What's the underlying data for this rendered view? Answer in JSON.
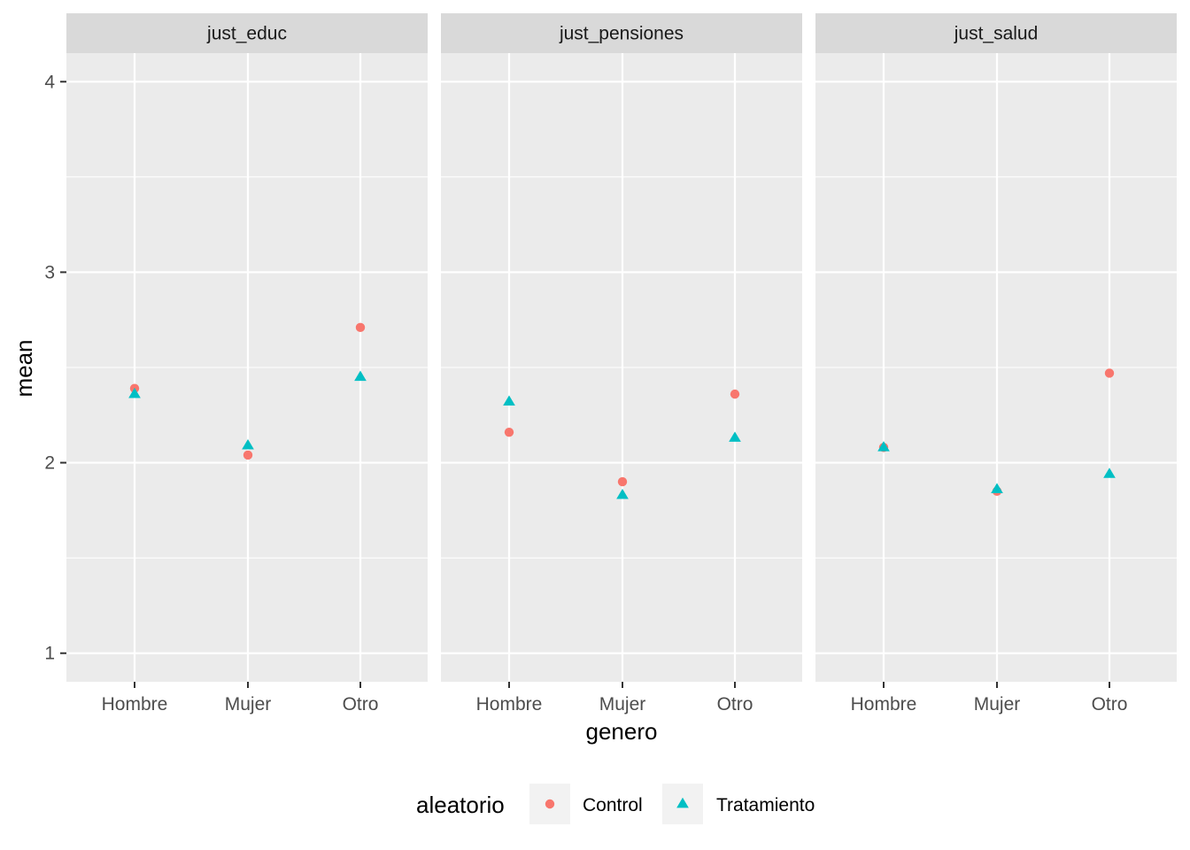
{
  "chart_data": {
    "type": "scatter",
    "xlabel": "genero",
    "ylabel": "mean",
    "categories": [
      "Hombre",
      "Mujer",
      "Otro"
    ],
    "ylim": [
      0.85,
      4.15
    ],
    "yticks": [
      1,
      2,
      3,
      4
    ],
    "yticks_labels": [
      "1",
      "2",
      "3",
      "4"
    ],
    "grid": true,
    "legend": {
      "title": "aleatorio",
      "placement": "bottom",
      "entries": [
        {
          "name": "Control",
          "shape": "circle",
          "color": "#F8766D"
        },
        {
          "name": "Tratamiento",
          "shape": "triangle",
          "color": "#00BFC4"
        }
      ]
    },
    "panels": [
      {
        "title": "just_educ",
        "series": [
          {
            "name": "Control",
            "values": [
              2.39,
              2.04,
              2.71
            ]
          },
          {
            "name": "Tratamiento",
            "values": [
              2.36,
              2.09,
              2.45
            ]
          }
        ]
      },
      {
        "title": "just_pensiones",
        "series": [
          {
            "name": "Control",
            "values": [
              2.16,
              1.9,
              2.36
            ]
          },
          {
            "name": "Tratamiento",
            "values": [
              2.32,
              1.83,
              2.13
            ]
          }
        ]
      },
      {
        "title": "just_salud",
        "series": [
          {
            "name": "Control",
            "values": [
              2.08,
              1.85,
              2.47
            ]
          },
          {
            "name": "Tratamiento",
            "values": [
              2.08,
              1.86,
              1.94
            ]
          }
        ]
      }
    ]
  }
}
